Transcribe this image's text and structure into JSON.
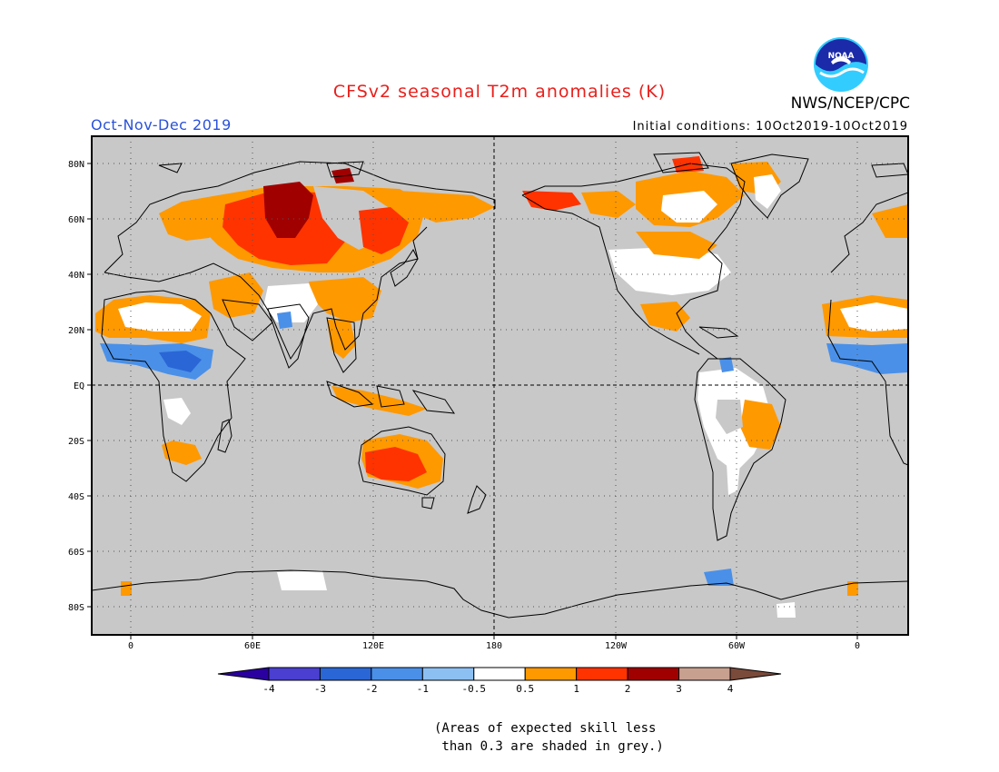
{
  "header": {
    "title": "CFSv2 seasonal T2m anomalies (K)",
    "title_color": "#e8201c",
    "season": "Oct-Nov-Dec 2019",
    "season_color": "#2a52d9",
    "initial_conditions": "Initial conditions: 10Oct2019-10Oct2019",
    "agency": "NWS/NCEP/CPC",
    "logo_text": "NOAA"
  },
  "map": {
    "background_color": "#c8c8c8",
    "land_outline_color": "#000000",
    "lat_labels": [
      "80N",
      "60N",
      "40N",
      "20N",
      "EQ",
      "20S",
      "40S",
      "60S",
      "80S"
    ],
    "lon_labels": [
      "0",
      "60E",
      "120E",
      "180",
      "120W",
      "60W",
      "0"
    ],
    "regions": [
      {
        "name": "Siberia / Northern Russia",
        "anomaly": "2-3",
        "color": "#a00000"
      },
      {
        "name": "Western Russia / Kazakhstan",
        "anomaly": "1-2",
        "color": "#ff3300"
      },
      {
        "name": "Australia interior",
        "anomaly": "1-2",
        "color": "#ff3300"
      },
      {
        "name": "West Sahel / Central Africa",
        "anomaly": "-1 to -2",
        "color": "#4a8fe0"
      },
      {
        "name": "Northern Africa",
        "anomaly": "0.5-1",
        "color": "#ff9900"
      },
      {
        "name": "Eastern Brazil",
        "anomaly": "0.5-1",
        "color": "#ff9900"
      }
    ]
  },
  "colorbar": {
    "labels": [
      "-4",
      "-3",
      "-2",
      "-1",
      "-0.5",
      "0.5",
      "1",
      "2",
      "3",
      "4"
    ],
    "colors": [
      "#2a00a0",
      "#4a3fd0",
      "#2a66d6",
      "#4a90e8",
      "#8cc0f2",
      "#ffffff",
      "#ff9900",
      "#ff3300",
      "#a00000",
      "#c8a090",
      "#7a4a3a"
    ]
  },
  "note": "(Areas of expected skill less\n than 0.3 are shaded in grey.)"
}
